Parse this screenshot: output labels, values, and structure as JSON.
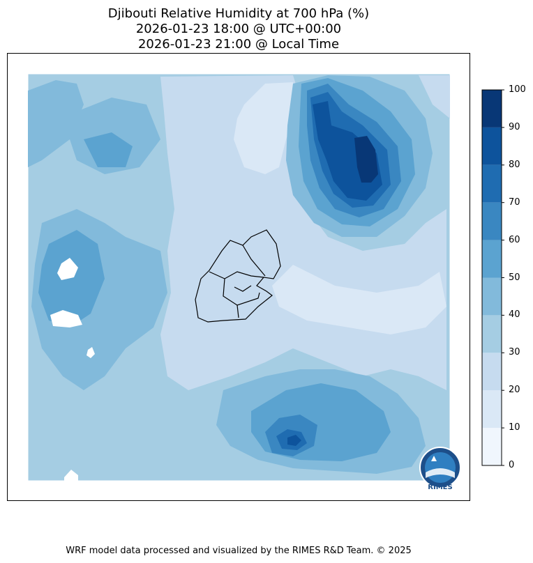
{
  "title": {
    "line1": "Djibouti Relative Humidity at 700 hPa (%)",
    "line2": "2026-01-23 18:00 @ UTC+00:00",
    "line3": "2026-01-23 21:00 @ Local Time"
  },
  "colorbar": {
    "ticks": [
      "0",
      "10",
      "20",
      "30",
      "40",
      "50",
      "60",
      "70",
      "80",
      "90",
      "100"
    ],
    "colors": [
      "#f0f6fd",
      "#dae8f6",
      "#c6dbef",
      "#a5cde3",
      "#82badb",
      "#5ba3d0",
      "#3a87c1",
      "#1f6cb1",
      "#0d539c",
      "#083776"
    ],
    "range": [
      0,
      100
    ]
  },
  "logo": {
    "text": "RIMES"
  },
  "footer": "WRF model data processed and visualized by the RIMES R&D Team. © 2025"
}
